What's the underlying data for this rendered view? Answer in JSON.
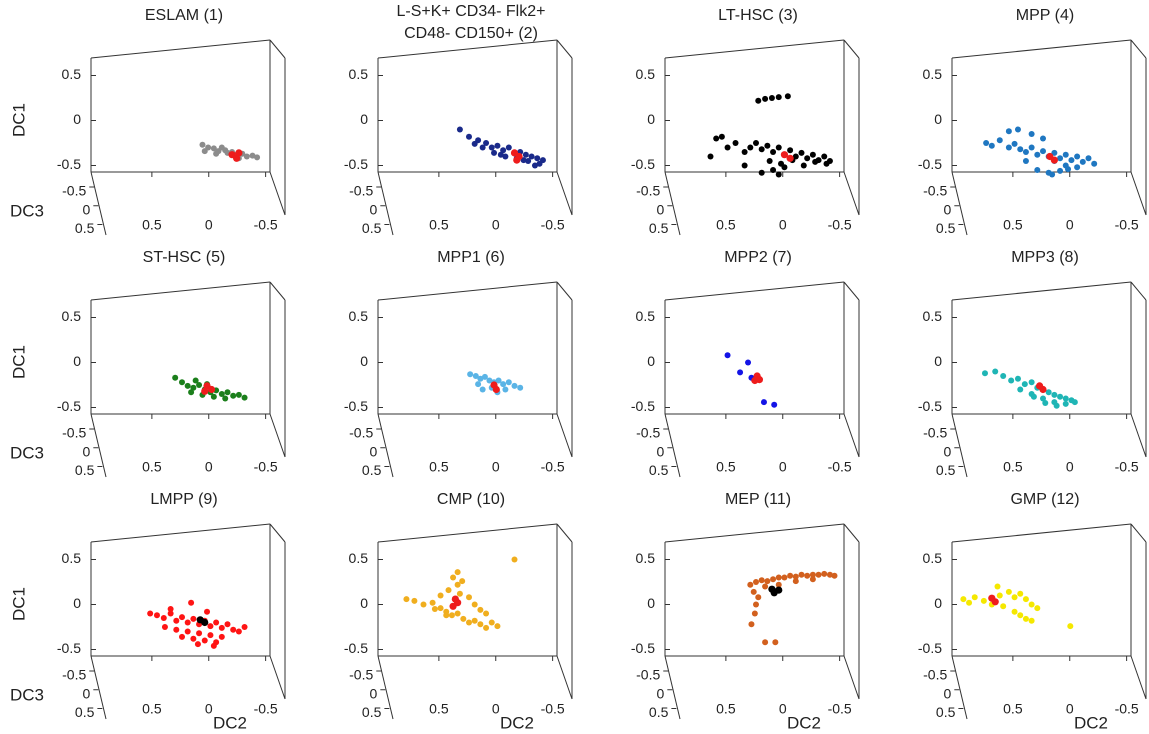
{
  "chart_data": [
    {
      "type": "scatter3d",
      "title": "ESLAM (1)",
      "ylabel": "DC1",
      "zlabel": "DC3",
      "xlim": [
        1,
        -0.6
      ],
      "ylim": [
        -0.55,
        0.85
      ],
      "zlim": [
        -0.9,
        0.7
      ],
      "xticks": [
        0.5,
        0,
        -0.5
      ],
      "yticks": [
        0.5,
        0,
        -0.5
      ],
      "zticks": [
        -0.5,
        0,
        0.5
      ],
      "series": [
        {
          "color": "#8c8c8c",
          "x": [
            0.02,
            -0.03,
            -0.08,
            -0.12,
            -0.15,
            -0.2,
            -0.24,
            -0.28,
            -0.33,
            -0.37,
            -0.42,
            -0.46,
            0.0,
            -0.1,
            -0.18,
            -0.3
          ],
          "y": [
            -0.27,
            -0.3,
            -0.31,
            -0.34,
            -0.3,
            -0.36,
            -0.35,
            -0.38,
            -0.37,
            -0.4,
            -0.39,
            -0.41,
            -0.34,
            -0.37,
            -0.33,
            -0.42
          ]
        },
        {
          "color": "#ee1c1c",
          "x": [
            -0.24,
            -0.28,
            -0.3
          ],
          "y": [
            -0.38,
            -0.42,
            -0.36
          ]
        }
      ]
    },
    {
      "type": "scatter3d",
      "title": [
        "L-S+K+ CD34- Flk2+",
        "CD48- CD150+ (2)"
      ],
      "xlim": [
        1,
        -0.6
      ],
      "ylim": [
        -0.55,
        0.85
      ],
      "zlim": [
        -0.9,
        0.7
      ],
      "xticks": [
        0.5,
        0,
        -0.5
      ],
      "yticks": [
        0.5,
        0,
        -0.5
      ],
      "zticks": [
        -0.5,
        0,
        0.5
      ],
      "series": [
        {
          "color": "#1a2a8a",
          "x": [
            0.28,
            0.2,
            0.12,
            0.05,
            0.0,
            -0.05,
            -0.1,
            -0.15,
            -0.2,
            -0.25,
            -0.3,
            -0.35,
            -0.4,
            -0.45,
            0.08,
            -0.02,
            -0.12,
            -0.22,
            -0.32,
            -0.42,
            0.15,
            -0.08,
            -0.28,
            -0.38
          ],
          "y": [
            -0.1,
            -0.18,
            -0.22,
            -0.25,
            -0.3,
            -0.28,
            -0.33,
            -0.3,
            -0.36,
            -0.35,
            -0.38,
            -0.4,
            -0.42,
            -0.44,
            -0.3,
            -0.36,
            -0.4,
            -0.42,
            -0.45,
            -0.48,
            -0.26,
            -0.38,
            -0.44,
            -0.5
          ]
        },
        {
          "color": "#ee1c1c",
          "x": [
            -0.2,
            -0.24,
            -0.22
          ],
          "y": [
            -0.36,
            -0.4,
            -0.44
          ]
        }
      ]
    },
    {
      "type": "scatter3d",
      "title": "LT-HSC (3)",
      "xlim": [
        1,
        -0.6
      ],
      "ylim": [
        -0.55,
        0.85
      ],
      "zlim": [
        -0.9,
        0.7
      ],
      "xticks": [
        0.5,
        0,
        -0.5
      ],
      "yticks": [
        0.5,
        0,
        -0.5
      ],
      "zticks": [
        -0.5,
        0,
        0.5
      ],
      "series": [
        {
          "color": "#000000",
          "x": [
            0.55,
            0.45,
            0.38,
            0.3,
            0.6,
            0.5,
            0.25,
            0.2,
            0.15,
            0.1,
            0.05,
            0.0,
            -0.05,
            -0.1,
            -0.15,
            -0.2,
            -0.25,
            -0.3,
            -0.35,
            -0.4,
            -0.45,
            0.08,
            -0.02,
            -0.12,
            -0.22,
            -0.32,
            -0.42,
            0.18,
            0.12,
            0.06,
            0.0,
            -0.08,
            0.05,
            0.0,
            -0.05,
            0.3,
            0.15
          ],
          "y": [
            -0.2,
            -0.3,
            -0.25,
            -0.35,
            -0.4,
            -0.18,
            -0.3,
            -0.25,
            -0.32,
            -0.28,
            -0.35,
            -0.3,
            -0.38,
            -0.33,
            -0.4,
            -0.36,
            -0.42,
            -0.38,
            -0.44,
            -0.4,
            -0.45,
            -0.45,
            -0.48,
            -0.44,
            -0.5,
            -0.46,
            -0.48,
            0.22,
            0.24,
            0.25,
            0.26,
            0.27,
            -0.55,
            -0.6,
            -0.52,
            -0.5,
            -0.58
          ]
        },
        {
          "color": "#ee1c1c",
          "x": [
            -0.05,
            -0.1
          ],
          "y": [
            -0.38,
            -0.42
          ]
        }
      ]
    },
    {
      "type": "scatter3d",
      "title": "MPP (4)",
      "xlim": [
        1,
        -0.6
      ],
      "ylim": [
        -0.55,
        0.85
      ],
      "zlim": [
        -0.9,
        0.7
      ],
      "xticks": [
        0.5,
        0,
        -0.5
      ],
      "yticks": [
        0.5,
        0,
        -0.5
      ],
      "zticks": [
        -0.5,
        0,
        0.5
      ],
      "series": [
        {
          "color": "#1f77c1",
          "x": [
            0.7,
            0.65,
            0.58,
            0.5,
            0.45,
            0.4,
            0.35,
            0.3,
            0.25,
            0.2,
            0.15,
            0.1,
            0.05,
            0.0,
            -0.05,
            -0.1,
            -0.15,
            -0.2,
            -0.25,
            0.5,
            0.42,
            0.3,
            0.2,
            0.1,
            0.0,
            -0.1,
            0.25,
            0.15,
            0.05,
            0.35,
            0.12,
            -0.02
          ],
          "y": [
            -0.25,
            -0.28,
            -0.22,
            -0.3,
            -0.26,
            -0.32,
            -0.35,
            -0.3,
            -0.38,
            -0.34,
            -0.4,
            -0.36,
            -0.42,
            -0.38,
            -0.44,
            -0.4,
            -0.46,
            -0.42,
            -0.48,
            -0.12,
            -0.1,
            -0.15,
            -0.2,
            -0.45,
            -0.5,
            -0.52,
            -0.55,
            -0.58,
            -0.56,
            -0.45,
            -0.6,
            -0.54
          ]
        },
        {
          "color": "#ee1c1c",
          "x": [
            0.14,
            0.1
          ],
          "y": [
            -0.4,
            -0.44
          ]
        }
      ]
    },
    {
      "type": "scatter3d",
      "title": "ST-HSC (5)",
      "ylabel": "DC1",
      "zlabel": "DC3",
      "xlim": [
        1,
        -0.6
      ],
      "ylim": [
        -0.55,
        0.85
      ],
      "zlim": [
        -0.9,
        0.7
      ],
      "xticks": [
        0.5,
        0,
        -0.5
      ],
      "yticks": [
        0.5,
        0,
        -0.5
      ],
      "zticks": [
        -0.5,
        0,
        0.5
      ],
      "series": [
        {
          "color": "#1b7f1b",
          "x": [
            0.26,
            0.2,
            0.15,
            0.1,
            0.05,
            0.0,
            -0.05,
            -0.1,
            -0.15,
            -0.2,
            -0.25,
            -0.3,
            -0.35,
            0.12,
            0.02,
            -0.08,
            -0.18,
            0.08,
            -0.02
          ],
          "y": [
            -0.17,
            -0.22,
            -0.26,
            -0.28,
            -0.25,
            -0.3,
            -0.33,
            -0.31,
            -0.35,
            -0.33,
            -0.37,
            -0.36,
            -0.39,
            -0.33,
            -0.36,
            -0.38,
            -0.4,
            -0.2,
            -0.24
          ]
        },
        {
          "color": "#ee1c1c",
          "x": [
            -0.02,
            -0.06,
            0.0
          ],
          "y": [
            -0.26,
            -0.3,
            -0.32
          ]
        }
      ]
    },
    {
      "type": "scatter3d",
      "title": "MPP1 (6)",
      "xlim": [
        1,
        -0.6
      ],
      "ylim": [
        -0.55,
        0.85
      ],
      "zlim": [
        -0.9,
        0.7
      ],
      "xticks": [
        0.5,
        0,
        -0.5
      ],
      "yticks": [
        0.5,
        0,
        -0.5
      ],
      "zticks": [
        -0.5,
        0,
        0.5
      ],
      "series": [
        {
          "color": "#5ab4e6",
          "x": [
            0.19,
            0.14,
            0.1,
            0.06,
            0.02,
            -0.02,
            -0.06,
            -0.1,
            -0.15,
            -0.2,
            -0.25,
            0.12,
            0.0,
            -0.12,
            0.08,
            -0.05
          ],
          "y": [
            -0.13,
            -0.15,
            -0.18,
            -0.16,
            -0.2,
            -0.22,
            -0.2,
            -0.24,
            -0.22,
            -0.26,
            -0.28,
            -0.24,
            -0.28,
            -0.3,
            -0.3,
            -0.33
          ]
        },
        {
          "color": "#ee1c1c",
          "x": [
            -0.02,
            -0.04
          ],
          "y": [
            -0.25,
            -0.3
          ]
        }
      ]
    },
    {
      "type": "scatter3d",
      "title": "MPP2 (7)",
      "xlim": [
        1,
        -0.6
      ],
      "ylim": [
        -0.55,
        0.85
      ],
      "zlim": [
        -0.9,
        0.7
      ],
      "xticks": [
        0.5,
        0,
        -0.5
      ],
      "yticks": [
        0.5,
        0,
        -0.5
      ],
      "zticks": [
        -0.5,
        0,
        0.5
      ],
      "series": [
        {
          "color": "#1414e6",
          "x": [
            0.45,
            0.27,
            0.34,
            0.24,
            0.13,
            0.04
          ],
          "y": [
            0.08,
            0.0,
            -0.11,
            -0.17,
            -0.44,
            -0.47
          ]
        },
        {
          "color": "#ee1c1c",
          "x": [
            0.19,
            0.17,
            0.21
          ],
          "y": [
            -0.15,
            -0.19,
            -0.2
          ]
        }
      ]
    },
    {
      "type": "scatter3d",
      "title": "MPP3 (8)",
      "xlim": [
        1,
        -0.6
      ],
      "ylim": [
        -0.55,
        0.85
      ],
      "zlim": [
        -0.9,
        0.7
      ],
      "xticks": [
        0.5,
        0,
        -0.5
      ],
      "yticks": [
        0.5,
        0,
        -0.5
      ],
      "zticks": [
        -0.5,
        0,
        0.5
      ],
      "series": [
        {
          "color": "#1fb5b5",
          "x": [
            0.71,
            0.62,
            0.55,
            0.48,
            0.42,
            0.36,
            0.3,
            0.25,
            0.2,
            0.15,
            0.1,
            0.05,
            0.0,
            -0.05,
            -0.08,
            0.4,
            0.3,
            0.2,
            0.1,
            0.0,
            0.28,
            0.18,
            0.08
          ],
          "y": [
            -0.12,
            -0.1,
            -0.15,
            -0.2,
            -0.18,
            -0.24,
            -0.22,
            -0.28,
            -0.3,
            -0.33,
            -0.36,
            -0.38,
            -0.4,
            -0.42,
            -0.44,
            -0.3,
            -0.35,
            -0.4,
            -0.44,
            -0.46,
            -0.38,
            -0.45,
            -0.48
          ]
        },
        {
          "color": "#ee1c1c",
          "x": [
            0.23,
            0.2
          ],
          "y": [
            -0.26,
            -0.3
          ]
        }
      ]
    },
    {
      "type": "scatter3d",
      "title": "LMPP (9)",
      "xlabel": "DC2",
      "ylabel": "DC1",
      "zlabel": "DC3",
      "xlim": [
        1,
        -0.6
      ],
      "ylim": [
        -0.55,
        0.85
      ],
      "zlim": [
        -0.9,
        0.7
      ],
      "xticks": [
        0.5,
        0,
        -0.5
      ],
      "yticks": [
        0.5,
        0,
        -0.5
      ],
      "zticks": [
        -0.5,
        0,
        0.5
      ],
      "series": [
        {
          "color": "#ff1414",
          "x": [
            0.48,
            0.42,
            0.36,
            0.3,
            0.25,
            0.2,
            0.15,
            0.1,
            0.05,
            0.0,
            -0.05,
            -0.1,
            -0.15,
            -0.2,
            -0.25,
            -0.3,
            -0.35,
            0.35,
            0.25,
            0.15,
            0.05,
            -0.05,
            -0.15,
            0.2,
            0.1,
            0.0,
            -0.1,
            0.3,
            0.12,
            -0.02,
            0.06,
            -0.08
          ],
          "y": [
            -0.1,
            -0.12,
            -0.15,
            -0.1,
            -0.18,
            -0.14,
            -0.2,
            -0.16,
            -0.22,
            -0.18,
            -0.24,
            -0.2,
            -0.26,
            -0.22,
            -0.28,
            -0.3,
            -0.25,
            -0.25,
            -0.28,
            -0.3,
            -0.32,
            -0.34,
            -0.36,
            -0.36,
            -0.38,
            -0.4,
            -0.42,
            -0.05,
            0.02,
            -0.08,
            -0.44,
            -0.46
          ]
        },
        {
          "color": "#000000",
          "x": [
            0.04,
            0.0
          ],
          "y": [
            -0.17,
            -0.2
          ]
        }
      ]
    },
    {
      "type": "scatter3d",
      "title": "CMP (10)",
      "xlabel": "DC2",
      "xlim": [
        1,
        -0.6
      ],
      "ylim": [
        -0.55,
        0.85
      ],
      "zlim": [
        -0.9,
        0.7
      ],
      "xticks": [
        0.5,
        0,
        -0.5
      ],
      "yticks": [
        0.5,
        0,
        -0.5
      ],
      "zticks": [
        -0.5,
        0,
        0.5
      ],
      "series": [
        {
          "color": "#f0ae1e",
          "x": [
            0.75,
            0.68,
            0.6,
            0.52,
            0.45,
            0.4,
            0.35,
            0.3,
            0.25,
            0.2,
            0.15,
            0.1,
            0.05,
            0.0,
            -0.05,
            0.45,
            0.38,
            0.3,
            0.34,
            0.3,
            0.26,
            0.28,
            0.2,
            0.15,
            0.1,
            0.05,
            -0.2,
            0.5,
            0.4
          ],
          "y": [
            0.06,
            0.04,
            0.0,
            0.02,
            -0.04,
            -0.08,
            -0.12,
            -0.1,
            -0.16,
            -0.2,
            -0.18,
            -0.22,
            -0.26,
            -0.2,
            -0.24,
            0.1,
            0.16,
            0.22,
            0.3,
            0.36,
            0.26,
            0.12,
            0.08,
            0.0,
            -0.06,
            -0.1,
            0.5,
            -0.05,
            -0.12
          ]
        },
        {
          "color": "#ee1c1c",
          "x": [
            0.32,
            0.3,
            0.34
          ],
          "y": [
            0.06,
            0.02,
            -0.02
          ]
        }
      ]
    },
    {
      "type": "scatter3d",
      "title": "MEP (11)",
      "xlabel": "DC2",
      "xlim": [
        1,
        -0.6
      ],
      "ylim": [
        -0.55,
        0.85
      ],
      "zlim": [
        -0.9,
        0.7
      ],
      "xticks": [
        0.5,
        0,
        -0.5
      ],
      "yticks": [
        0.5,
        0,
        -0.5
      ],
      "zticks": [
        -0.5,
        0,
        0.5
      ],
      "series": [
        {
          "color": "#d2601e",
          "x": [
            0.25,
            0.2,
            0.15,
            0.1,
            0.05,
            0.0,
            -0.05,
            -0.1,
            -0.15,
            -0.2,
            -0.25,
            -0.3,
            -0.35,
            -0.4,
            -0.45,
            -0.49,
            0.22,
            0.18,
            0.2,
            0.21,
            0.24,
            0.12,
            0.0,
            -0.15,
            -0.3,
            0.12,
            0.03
          ],
          "y": [
            0.22,
            0.25,
            0.27,
            0.26,
            0.28,
            0.3,
            0.3,
            0.32,
            0.31,
            0.33,
            0.32,
            0.33,
            0.33,
            0.34,
            0.33,
            0.32,
            0.14,
            0.08,
            0.0,
            -0.1,
            -0.22,
            0.2,
            0.22,
            0.26,
            0.28,
            -0.42,
            -0.42
          ]
        },
        {
          "color": "#000000",
          "x": [
            0.04,
            0.0,
            0.06
          ],
          "y": [
            0.13,
            0.16,
            0.17
          ]
        }
      ]
    },
    {
      "type": "scatter3d",
      "title": "GMP (12)",
      "xlabel": "DC2",
      "xlim": [
        1,
        -0.6
      ],
      "ylim": [
        -0.55,
        0.85
      ],
      "zlim": [
        -0.9,
        0.7
      ],
      "xticks": [
        0.5,
        0,
        -0.5
      ],
      "yticks": [
        0.5,
        0,
        -0.5
      ],
      "zticks": [
        -0.5,
        0,
        0.5
      ],
      "series": [
        {
          "color": "#f5e800",
          "x": [
            0.9,
            0.85,
            0.8,
            0.72,
            0.65,
            0.58,
            0.5,
            0.45,
            0.4,
            0.35,
            0.3,
            0.25,
            0.45,
            0.4,
            0.35,
            0.3,
            -0.04,
            0.6,
            0.55
          ],
          "y": [
            0.06,
            0.02,
            0.08,
            0.04,
            0.0,
            0.1,
            0.14,
            0.08,
            0.12,
            0.06,
            0.0,
            -0.04,
            -0.08,
            -0.12,
            -0.16,
            -0.18,
            -0.24,
            0.2,
            -0.02
          ]
        },
        {
          "color": "#ee1c1c",
          "x": [
            0.65,
            0.62
          ],
          "y": [
            0.07,
            0.03
          ]
        }
      ]
    }
  ]
}
